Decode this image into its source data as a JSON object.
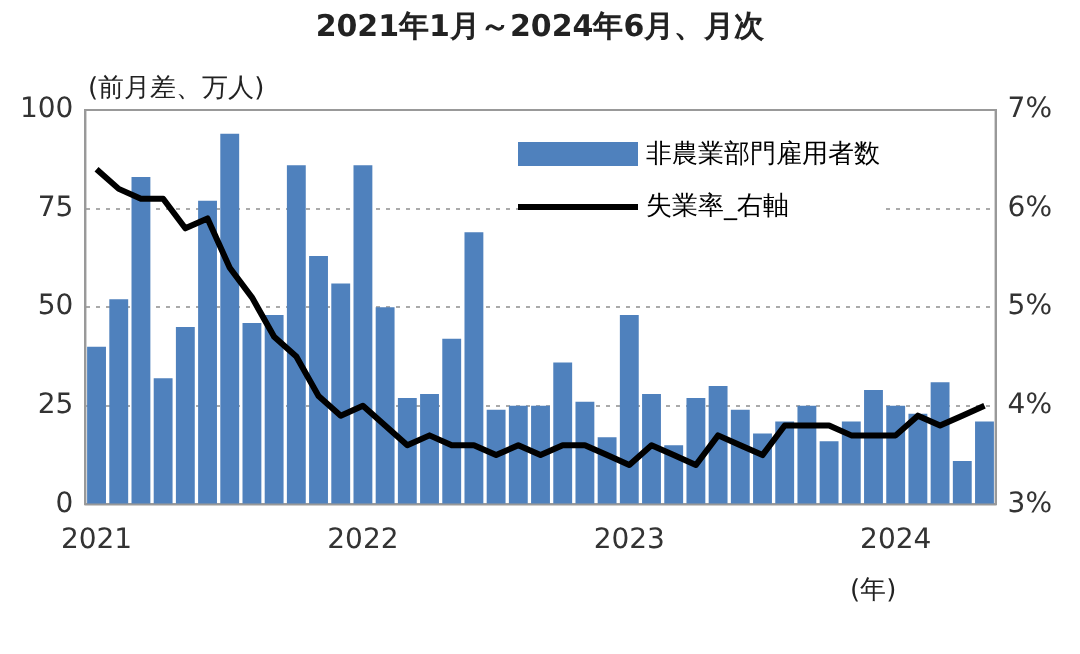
{
  "chart_data": {
    "type": "bar",
    "title": "2021年1月～2024年6月、月次",
    "ylabel": "(前月差、万人)",
    "annotations": [
      "(年)"
    ],
    "categories": [
      "2021",
      null,
      null,
      null,
      null,
      null,
      null,
      null,
      null,
      null,
      null,
      null,
      "2022",
      null,
      null,
      null,
      null,
      null,
      null,
      null,
      null,
      null,
      null,
      null,
      "2023",
      null,
      null,
      null,
      null,
      null,
      null,
      null,
      null,
      null,
      null,
      null,
      "2024",
      null,
      null,
      null,
      null
    ],
    "series": [
      {
        "name": "非農業部門雇用者数",
        "color": "#4f81bd",
        "values": [
          40,
          52,
          83,
          32,
          45,
          77,
          94,
          46,
          48,
          86,
          63,
          56,
          86,
          50,
          27,
          28,
          42,
          69,
          24,
          25,
          25,
          36,
          26,
          17,
          48,
          28,
          15,
          27,
          30,
          24,
          18,
          21,
          25,
          16,
          21,
          29,
          25,
          23,
          31,
          11,
          21
        ]
      },
      {
        "name": "失業率_右軸",
        "type": "line",
        "axis": "y2",
        "color": "#000000",
        "values": [
          6.4,
          6.2,
          6.1,
          6.1,
          5.8,
          5.9,
          5.4,
          5.1,
          4.7,
          4.5,
          4.1,
          3.9,
          4.0,
          3.8,
          3.6,
          3.7,
          3.6,
          3.6,
          3.5,
          3.6,
          3.5,
          3.6,
          3.6,
          3.5,
          3.4,
          3.6,
          3.5,
          3.4,
          3.7,
          3.6,
          3.5,
          3.8,
          3.8,
          3.8,
          3.7,
          3.7,
          3.7,
          3.9,
          3.8,
          3.9,
          4.0
        ]
      }
    ],
    "ylim": [
      0,
      100
    ],
    "yticks": [
      0,
      25,
      50,
      75,
      100
    ],
    "y2lim": [
      3,
      7
    ],
    "y2ticks": [
      {
        "value": 3,
        "label": "3%"
      },
      {
        "value": 4,
        "label": "4%"
      },
      {
        "value": 5,
        "label": "5%"
      },
      {
        "value": 6,
        "label": "6%"
      },
      {
        "value": 7,
        "label": "7%"
      }
    ],
    "grid": "y",
    "legend": "top right",
    "marker": "none",
    "line_style": "solid"
  }
}
